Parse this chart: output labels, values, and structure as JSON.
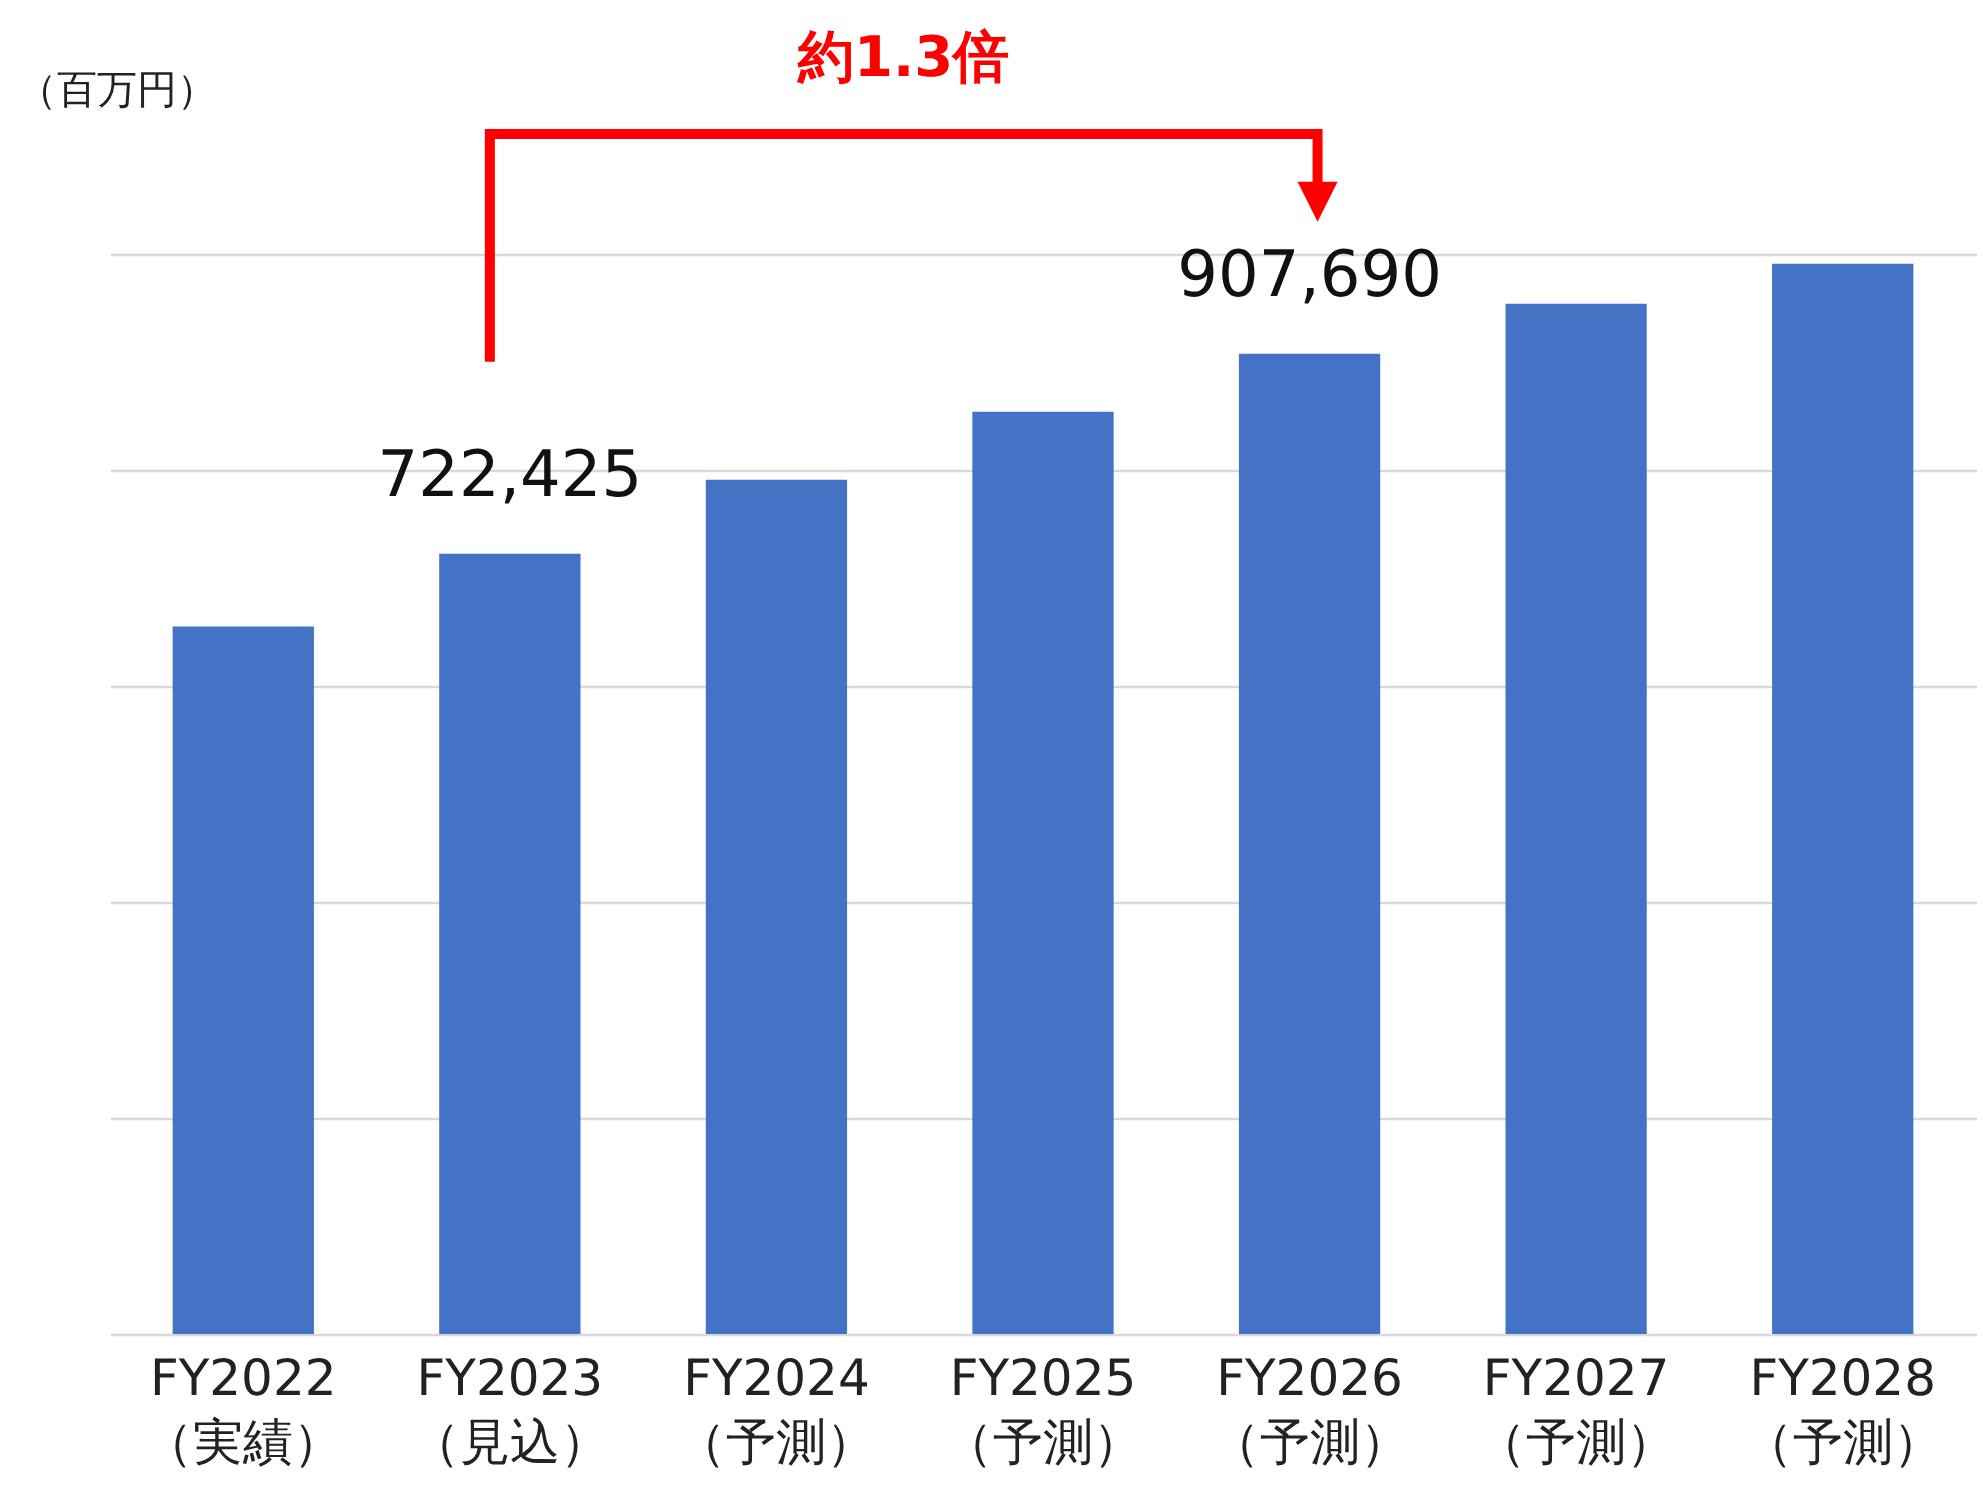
{
  "chart_data": {
    "type": "bar",
    "ylabel": "（百万円）",
    "annotations": [
      "約1.3倍"
    ],
    "categories": [
      "FY2022\n（実績）",
      "FY2023\n（見込）",
      "FY2024\n（予測）",
      "FY2025\n（予測）",
      "FY2026\n（予測）",
      "FY2027\n（予測）",
      "FY2028\n（予測）"
    ],
    "values": [
      655000,
      722425,
      791000,
      854000,
      907690,
      954000,
      991000
    ],
    "value_labels": [
      null,
      "722,425",
      null,
      null,
      "907,690",
      null,
      null
    ],
    "color": "#4472c4",
    "ylim": [
      0,
      1000000
    ],
    "yticks": [
      {
        "value": 0,
        "label": null
      },
      {
        "value": 200000,
        "label": null
      },
      {
        "value": 400000,
        "label": null
      },
      {
        "value": 600000,
        "label": null
      },
      {
        "value": 800000,
        "label": null
      },
      {
        "value": 1000000,
        "label": null
      }
    ],
    "grid": true
  }
}
